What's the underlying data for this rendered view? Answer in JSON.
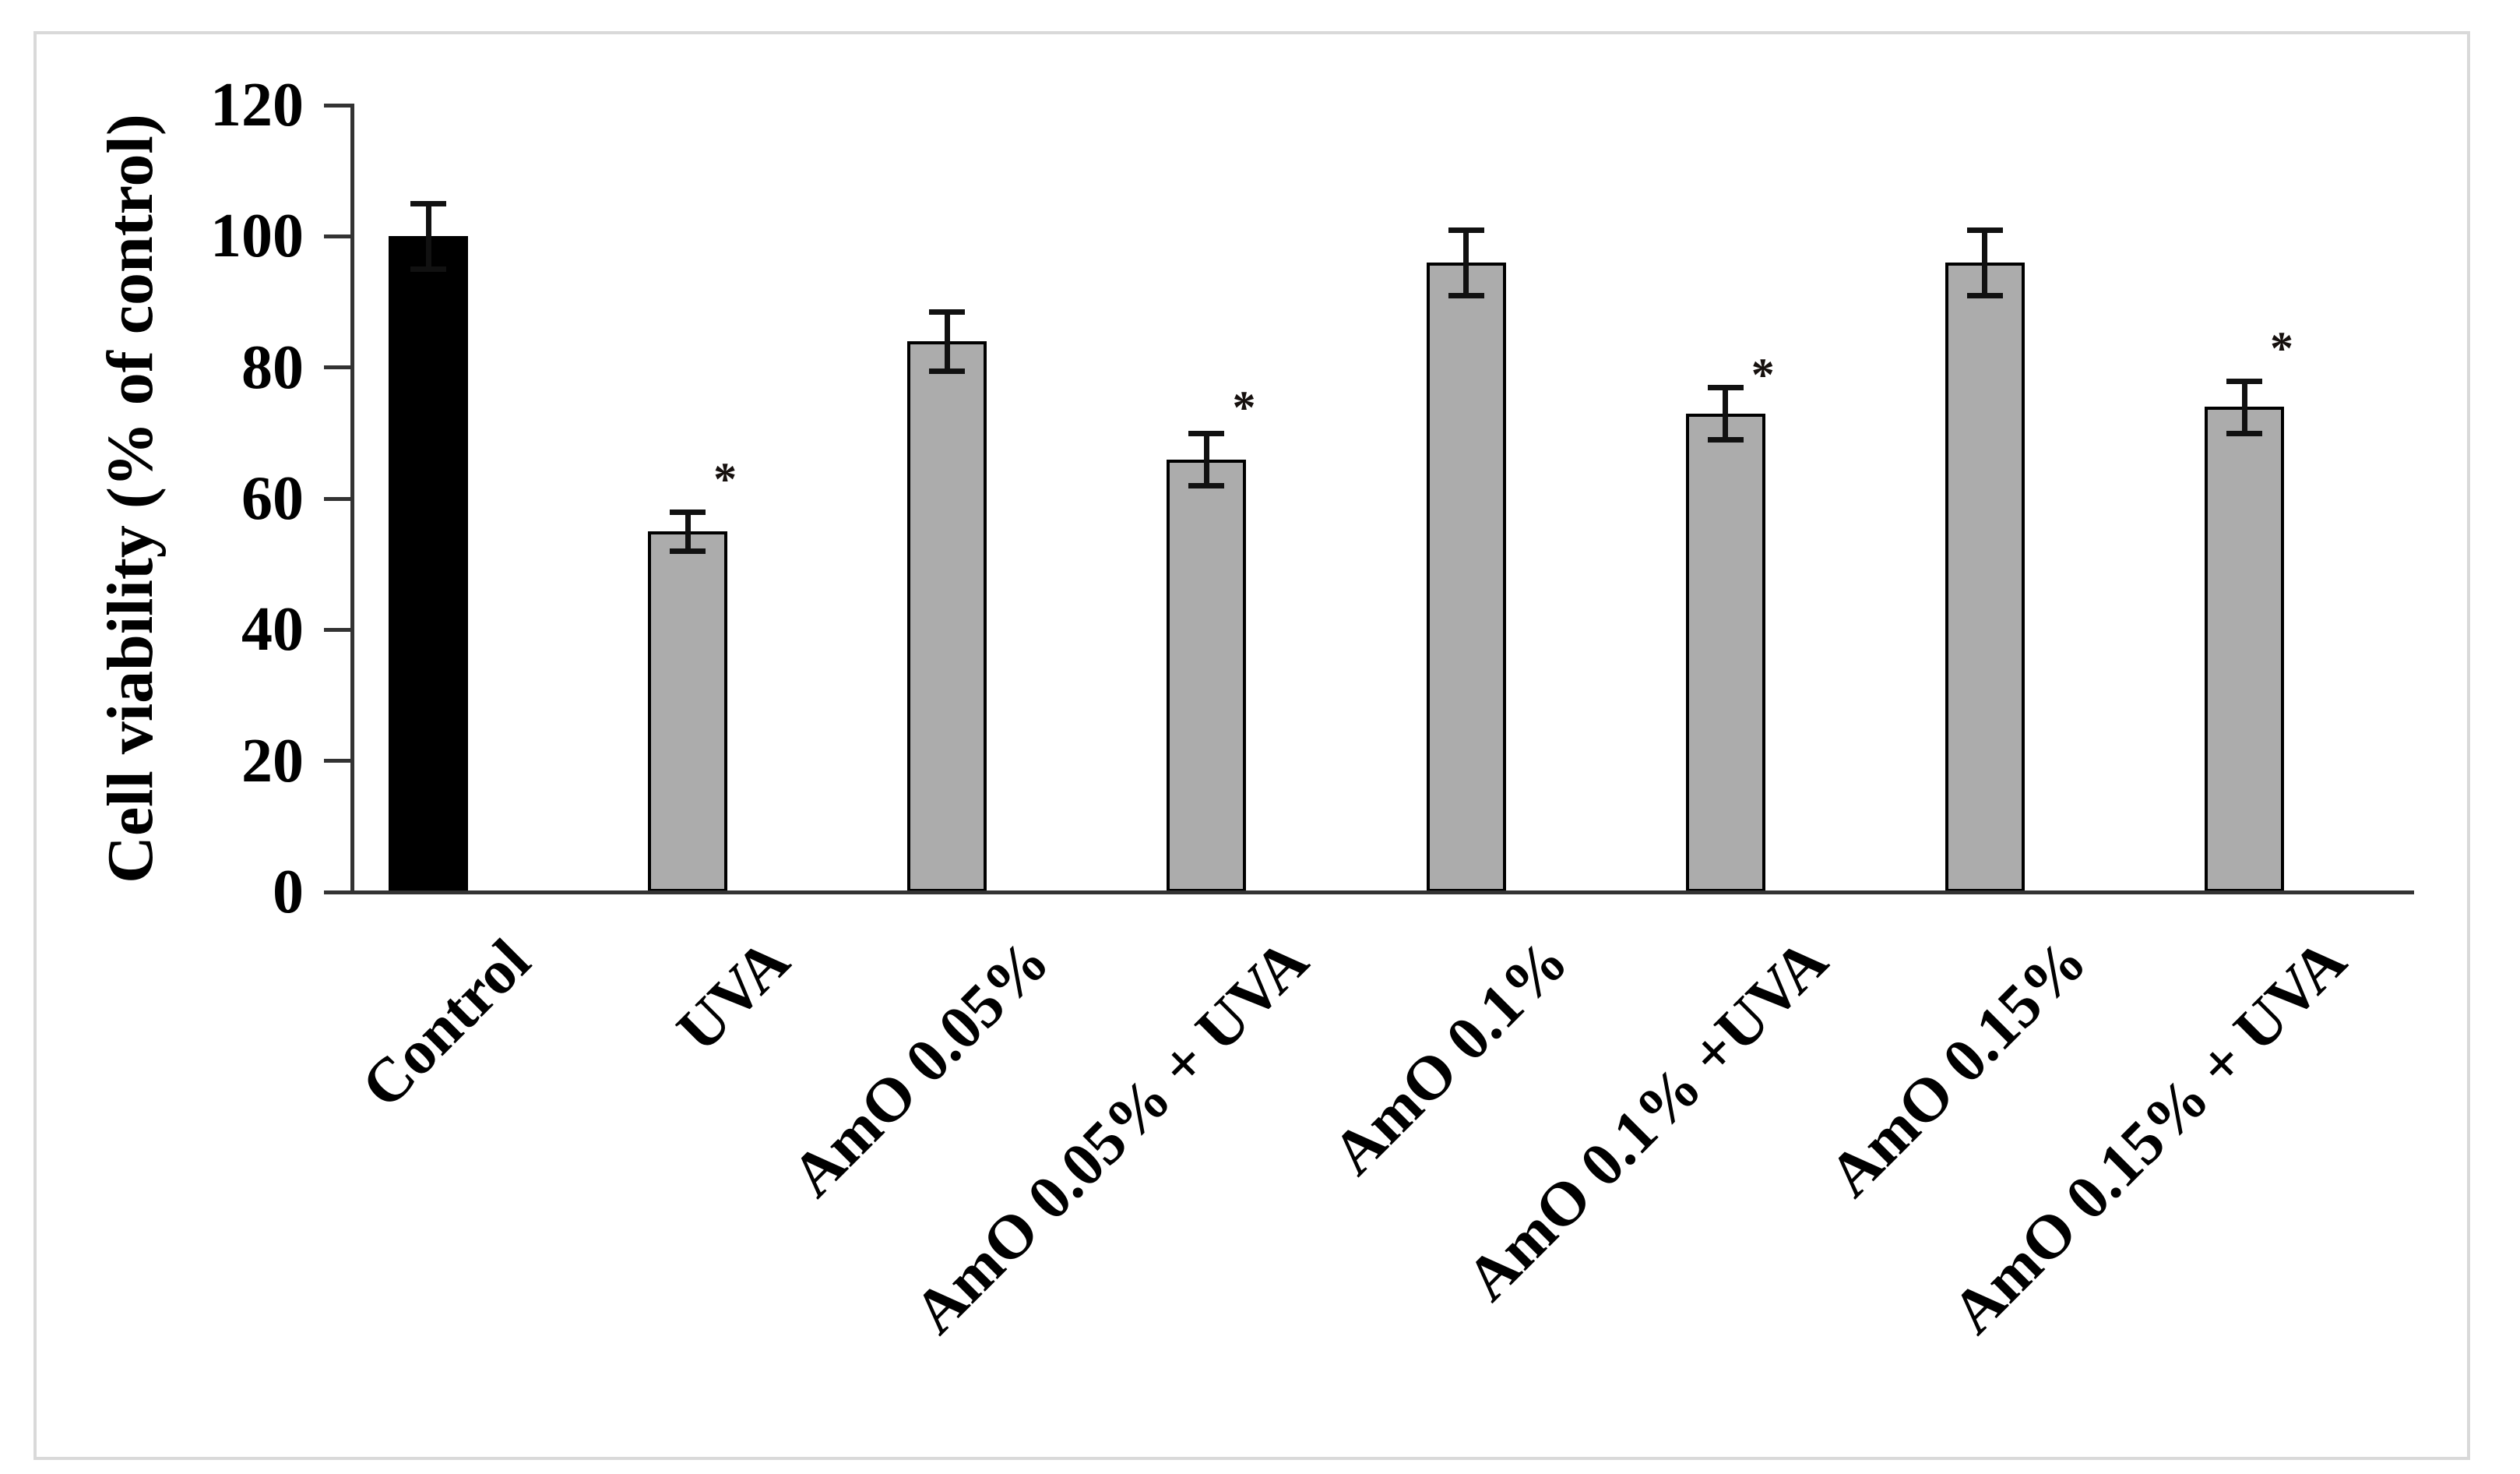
{
  "figure": {
    "description": "Bar chart of cell viability (% of control) for HaCaT-type cells treated with Amaranth oil (AmO) at different concentrations with and without UVA irradiation",
    "significance_marker": "*"
  },
  "chart_data": {
    "type": "bar",
    "title": "",
    "xlabel": "",
    "ylabel": "Cell viability (% of control)",
    "ylim": [
      0,
      120
    ],
    "yticks": [
      0,
      20,
      40,
      60,
      80,
      100,
      120
    ],
    "grid": false,
    "legend": false,
    "categories": [
      "Control",
      "UVA",
      "AmO 0.05%",
      "AmO 0.05% + UVA",
      "AmO 0.1%",
      "AmO 0.1% +UVA",
      "AmO 0.15%",
      "AmO 0.15% + UVA"
    ],
    "values": [
      100,
      55,
      84,
      66,
      96,
      73,
      96,
      74
    ],
    "errors": [
      5,
      3,
      4.5,
      4,
      5,
      4,
      5,
      4
    ],
    "significant": [
      false,
      true,
      false,
      true,
      false,
      true,
      false,
      true
    ],
    "marker_y": [
      null,
      64,
      null,
      75,
      null,
      80,
      null,
      84
    ],
    "marker_text": "*",
    "fills": [
      "#000000",
      "#acacac",
      "#acacac",
      "#acacac",
      "#acacac",
      "#acacac",
      "#acacac",
      "#acacac"
    ]
  },
  "style": {
    "background": "#ffffff",
    "frame_border": "#d9d9d9",
    "axis_color": "#333333",
    "bar_border": "#000000",
    "bar_fill_gray": "#acacac",
    "bar_fill_control": "#000000",
    "error_color": "#111111",
    "marker_color": "#16100e",
    "text_color": "#000000"
  }
}
